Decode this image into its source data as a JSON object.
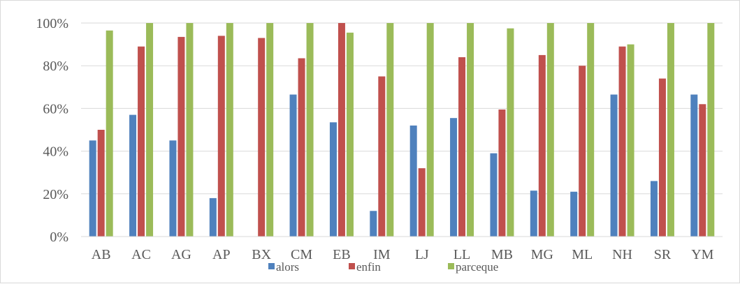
{
  "chart_data": {
    "type": "bar",
    "title": "",
    "xlabel": "",
    "ylabel": "",
    "ylim": [
      0,
      100
    ],
    "y_ticks": [
      "0%",
      "20%",
      "40%",
      "60%",
      "80%",
      "100%"
    ],
    "grid": true,
    "legend_position": "bottom",
    "categories": [
      "AB",
      "AC",
      "AG",
      "AP",
      "BX",
      "CM",
      "EB",
      "IM",
      "LJ",
      "LL",
      "MB",
      "MG",
      "ML",
      "NH",
      "SR",
      "YM"
    ],
    "series": [
      {
        "name": "alors",
        "color": "#4f81bd",
        "values": [
          45,
          57,
          45,
          18,
          0,
          66.5,
          53.5,
          12,
          52,
          55.5,
          39,
          21.5,
          21,
          66.5,
          26,
          66.5
        ]
      },
      {
        "name": "enfin",
        "color": "#c0504d",
        "values": [
          50,
          89,
          93.5,
          94,
          93,
          83.5,
          100,
          75,
          32,
          84,
          59.5,
          85,
          80,
          89,
          74,
          62
        ]
      },
      {
        "name": "parceque",
        "color": "#9bbb59",
        "values": [
          96.5,
          100,
          100,
          100,
          100,
          100,
          95.5,
          100,
          100,
          100,
          97.5,
          100,
          100,
          90,
          100,
          100
        ]
      }
    ]
  }
}
